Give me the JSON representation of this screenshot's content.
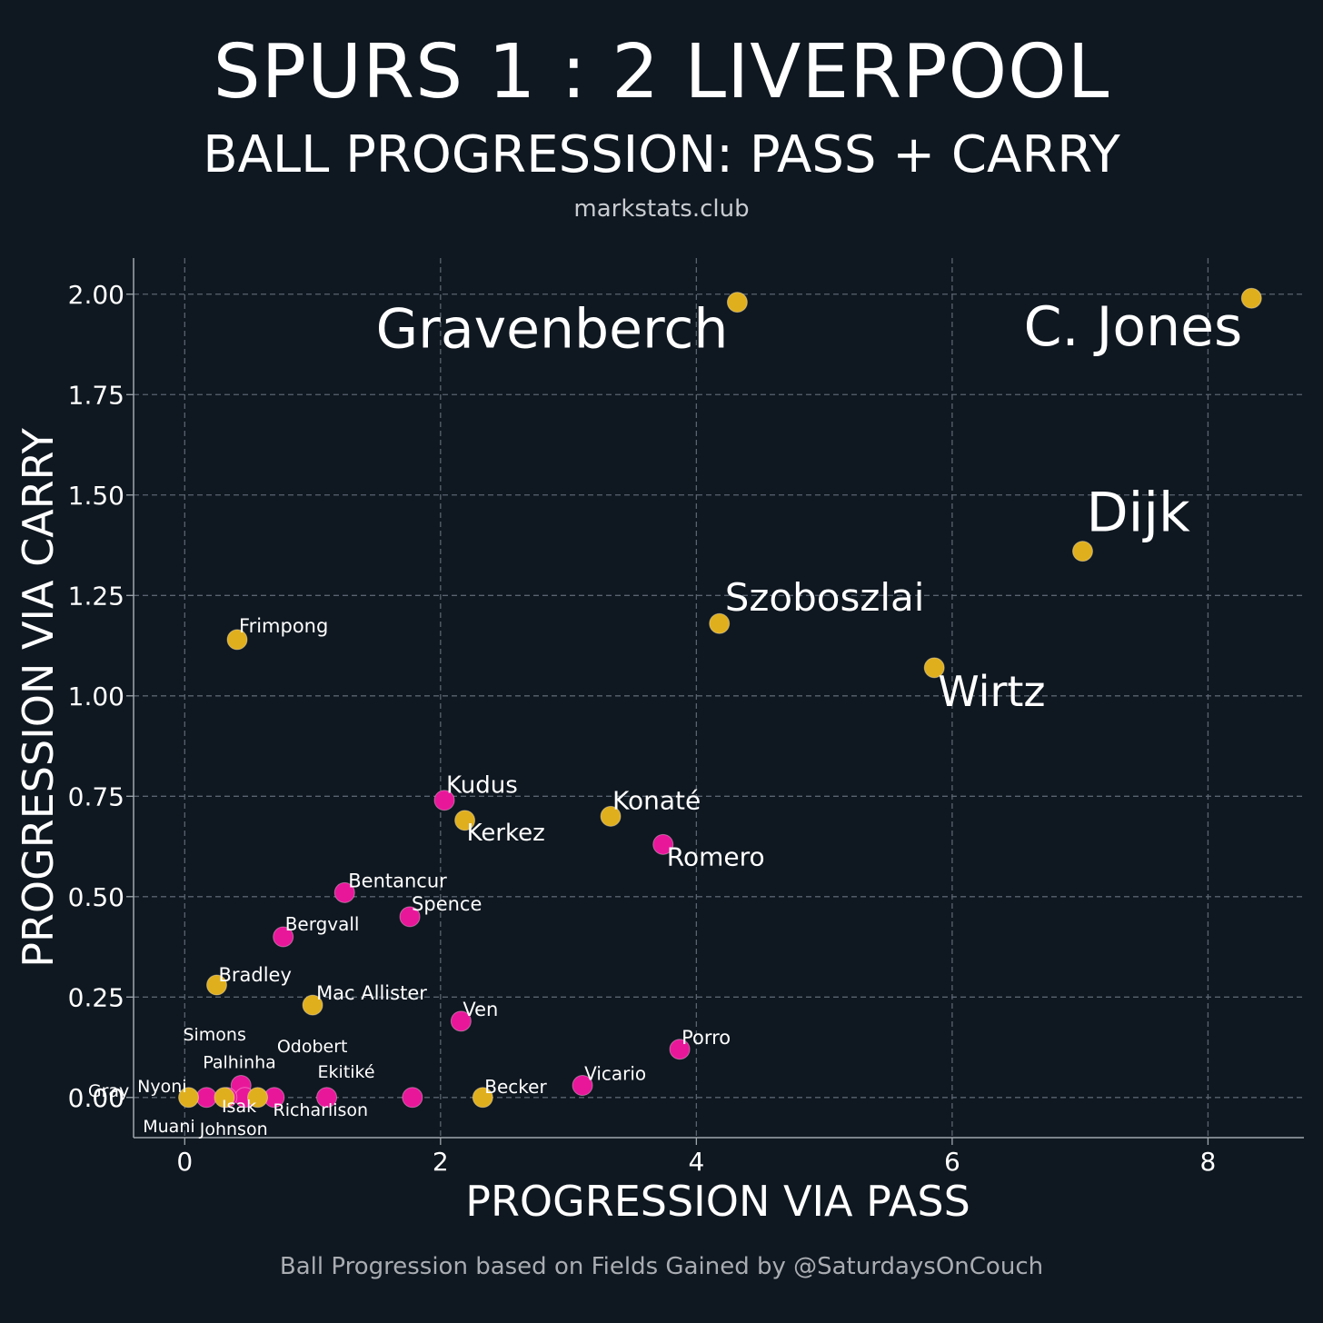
{
  "header": {
    "title": "SPURS 1 : 2 LIVERPOOL",
    "subtitle": "BALL PROGRESSION: PASS + CARRY",
    "source": "markstats.club"
  },
  "footer": {
    "caption": "Ball Progression based on Fields Gained by @SaturdaysOnCouch"
  },
  "colors": {
    "background": "#0f1720",
    "spurs": "#e8179a",
    "liverpool": "#e0af1e",
    "grid": "#5a6470",
    "axis": "#a0a7ae"
  },
  "chart_data": {
    "type": "scatter",
    "title": "SPURS 1 : 2 LIVERPOOL",
    "subtitle": "BALL PROGRESSION: PASS + CARRY",
    "xlabel": "PROGRESSION VIA PASS",
    "ylabel": "PROGRESSION VIA CARRY",
    "xlim": [
      -0.4,
      8.75
    ],
    "ylim": [
      -0.1,
      2.09
    ],
    "xticks": [
      0,
      2,
      4,
      6,
      8
    ],
    "xtick_labels": [
      "0",
      "2",
      "4",
      "6",
      "8"
    ],
    "yticks": [
      0,
      0.25,
      0.5,
      0.75,
      1.0,
      1.25,
      1.5,
      1.75,
      2.0
    ],
    "ytick_labels": [
      "0.00",
      "0.25",
      "0.50",
      "0.75",
      "1.00",
      "1.25",
      "1.50",
      "1.75",
      "2.00"
    ],
    "grid": true,
    "legend": "none",
    "points": [
      {
        "name": "C. Jones",
        "team": "Liverpool",
        "x": 8.34,
        "y": 1.99
      },
      {
        "name": "Gravenberch",
        "team": "Liverpool",
        "x": 4.32,
        "y": 1.98
      },
      {
        "name": "Dijk",
        "team": "Liverpool",
        "x": 7.02,
        "y": 1.36
      },
      {
        "name": "Szoboszlai",
        "team": "Liverpool",
        "x": 4.18,
        "y": 1.18
      },
      {
        "name": "Wirtz",
        "team": "Liverpool",
        "x": 5.86,
        "y": 1.07
      },
      {
        "name": "Frimpong",
        "team": "Liverpool",
        "x": 0.41,
        "y": 1.14
      },
      {
        "name": "Konaté",
        "team": "Liverpool",
        "x": 3.33,
        "y": 0.7
      },
      {
        "name": "Kerkez",
        "team": "Liverpool",
        "x": 2.19,
        "y": 0.69
      },
      {
        "name": "Bradley",
        "team": "Liverpool",
        "x": 0.25,
        "y": 0.28
      },
      {
        "name": "Mac Allister",
        "team": "Liverpool",
        "x": 1.0,
        "y": 0.23
      },
      {
        "name": "Becker",
        "team": "Liverpool",
        "x": 2.33,
        "y": 0.0
      },
      {
        "name": "Nyoni",
        "team": "Liverpool",
        "x": 0.03,
        "y": 0.0
      },
      {
        "name": "Isak",
        "team": "Liverpool",
        "x": 0.31,
        "y": 0.0
      },
      {
        "name": "Ekitiké",
        "team": "Liverpool",
        "x": 0.57,
        "y": 0.0
      },
      {
        "name": "Kudus",
        "team": "Spurs",
        "x": 2.03,
        "y": 0.74
      },
      {
        "name": "Romero",
        "team": "Spurs",
        "x": 3.74,
        "y": 0.63
      },
      {
        "name": "Bentancur",
        "team": "Spurs",
        "x": 1.25,
        "y": 0.51
      },
      {
        "name": "Spence",
        "team": "Spurs",
        "x": 1.76,
        "y": 0.45
      },
      {
        "name": "Bergvall",
        "team": "Spurs",
        "x": 0.77,
        "y": 0.4
      },
      {
        "name": "Ven",
        "team": "Spurs",
        "x": 2.16,
        "y": 0.19
      },
      {
        "name": "Porro",
        "team": "Spurs",
        "x": 3.87,
        "y": 0.12
      },
      {
        "name": "Vicario",
        "team": "Spurs",
        "x": 3.11,
        "y": 0.03
      },
      {
        "name": "Palhinha",
        "team": "Spurs",
        "x": 0.44,
        "y": 0.03
      },
      {
        "name": "Simons",
        "team": "Spurs",
        "x": 0.47,
        "y": 0.0
      },
      {
        "name": "Odobert",
        "team": "Spurs",
        "x": 0.7,
        "y": 0.0
      },
      {
        "name": "Muani",
        "team": "Spurs",
        "x": 0.17,
        "y": 0.0
      },
      {
        "name": "Johnson",
        "team": "Spurs",
        "x": 0.33,
        "y": 0.0
      },
      {
        "name": "Richarlison",
        "team": "Spurs",
        "x": 1.11,
        "y": 0.0
      },
      {
        "name": "Gray",
        "team": "Spurs",
        "x": 1.78,
        "y": 0.0
      }
    ]
  }
}
